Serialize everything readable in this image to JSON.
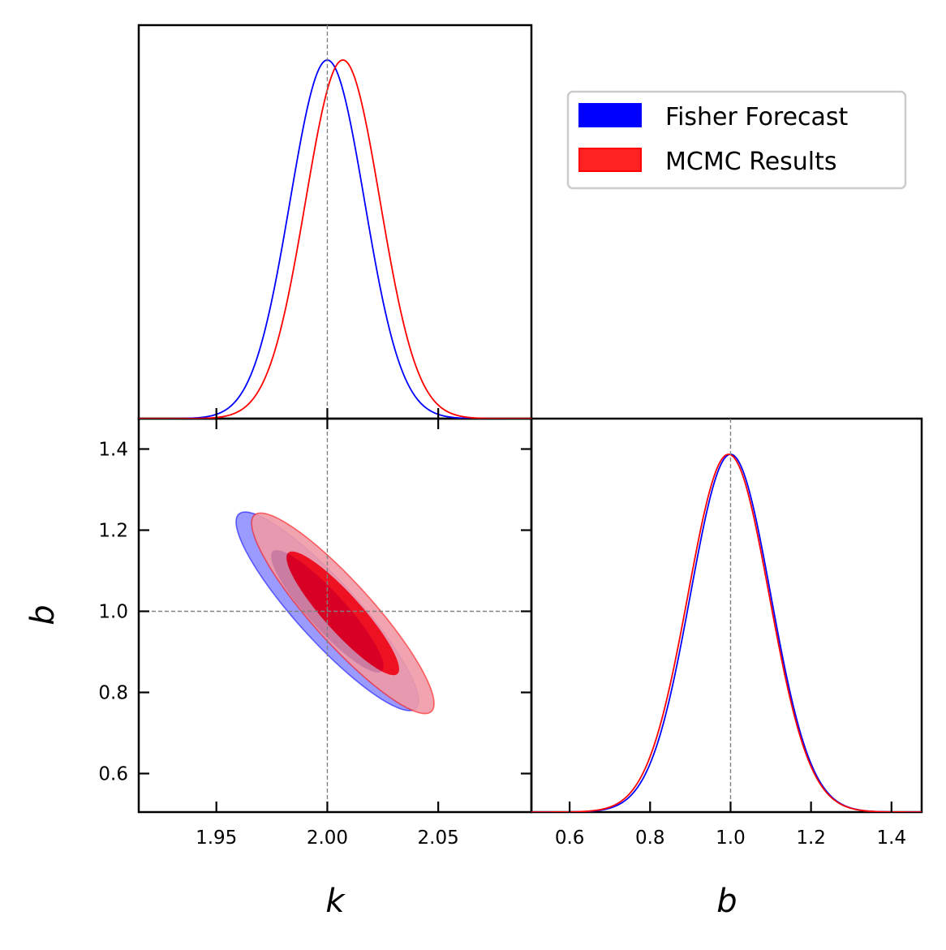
{
  "chart_data": {
    "type": "corner",
    "parameters": [
      "k",
      "b"
    ],
    "truth": {
      "k": 2.0,
      "b": 1.0
    },
    "axes": {
      "k": {
        "label": "k",
        "range": [
          1.915,
          2.092
        ],
        "ticks": [
          1.95,
          2.0,
          2.05
        ],
        "tick_labels": [
          "1.95",
          "2.00",
          "2.05"
        ]
      },
      "b": {
        "label": "b",
        "range": [
          0.505,
          1.475
        ],
        "ticks": [
          0.6,
          0.8,
          1.0,
          1.2,
          1.4
        ],
        "tick_labels": [
          "0.6",
          "0.8",
          "1.0",
          "1.2",
          "1.4"
        ]
      }
    },
    "series": [
      {
        "name": "Fisher Forecast",
        "color": "#0000ff",
        "k_mean": 2.0,
        "k_sigma": 0.0168,
        "b_mean": 1.0,
        "b_sigma": 0.1,
        "correlation": -0.9,
        "levels": [
          0.68,
          0.95
        ],
        "fill_colors": [
          "#3333ff",
          "#9a9aff"
        ]
      },
      {
        "name": "MCMC Results",
        "color": "#ff0000",
        "k_mean": 2.007,
        "k_sigma": 0.0168,
        "b_mean": 0.995,
        "b_sigma": 0.101,
        "correlation": -0.9,
        "levels": [
          0.68,
          0.95
        ],
        "fill_colors": [
          "#ee1122",
          "#f09aa6"
        ]
      }
    ],
    "overlap_color": "#d90026",
    "legend": {
      "position": "upper-right",
      "entries": [
        "Fisher Forecast",
        "MCMC Results"
      ]
    }
  }
}
